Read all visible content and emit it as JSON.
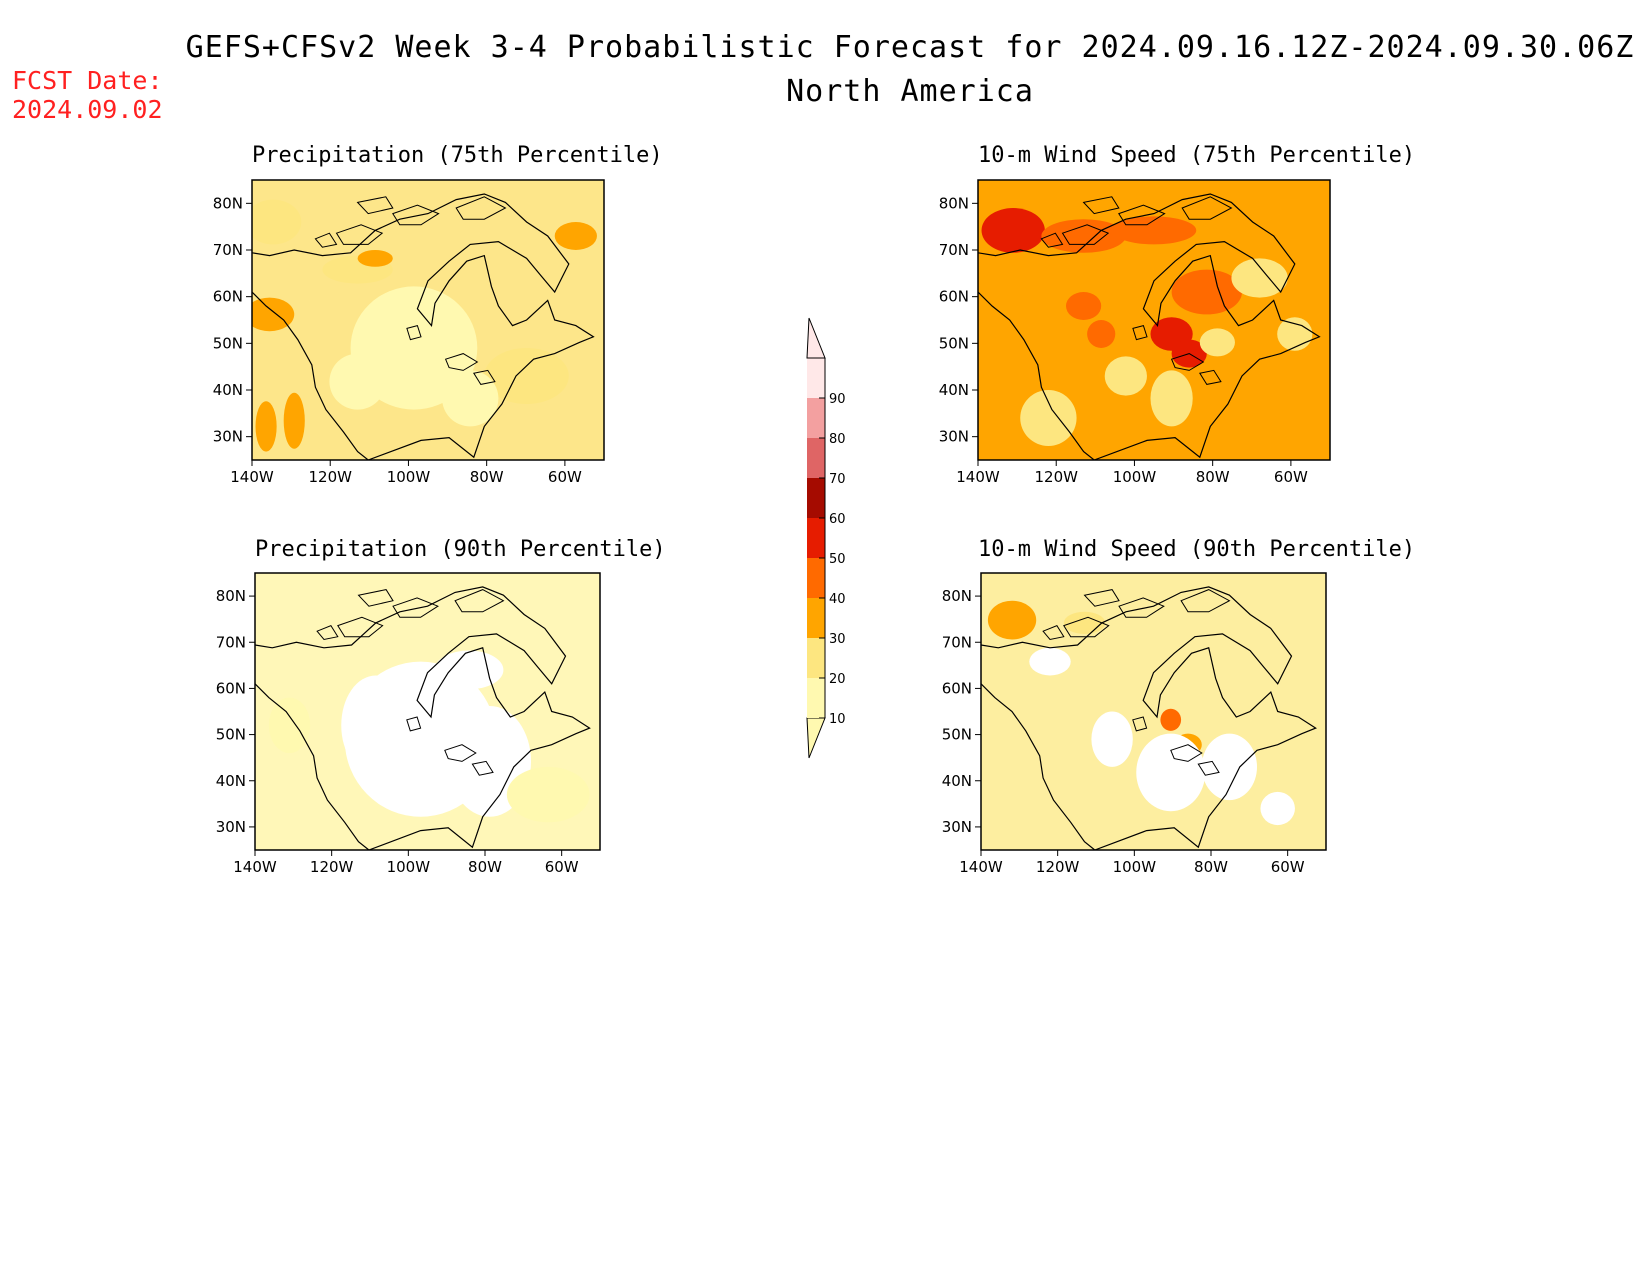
{
  "header": {
    "title": "GEFS+CFSv2 Week 3-4 Probabilistic Forecast for 2024.09.16.12Z-2024.09.30.06Z",
    "subtitle": "North America",
    "fcst_label": "FCST Date:",
    "fcst_date": "2024.09.02"
  },
  "panels": [
    {
      "id": "precip75",
      "title": "Precipitation (75th Percentile)"
    },
    {
      "id": "wind75",
      "title": "10-m Wind Speed (75th Percentile)"
    },
    {
      "id": "precip90",
      "title": "Precipitation (90th Percentile)"
    },
    {
      "id": "wind90",
      "title": "10-m Wind Speed (90th Percentile)"
    }
  ],
  "axes": {
    "lat_labels": [
      "80N",
      "70N",
      "60N",
      "50N",
      "40N",
      "30N"
    ],
    "lon_labels": [
      "140W",
      "120W",
      "100W",
      "80W",
      "60W"
    ]
  },
  "colorbar": {
    "labels": [
      "10",
      "20",
      "30",
      "40",
      "50",
      "60",
      "70",
      "80",
      "90"
    ],
    "colors": [
      "#fff9b0",
      "#fde680",
      "#ffa500",
      "#ff6a00",
      "#e61c00",
      "#a50b00",
      "#df6565",
      "#f3a0a0",
      "#ffe8e8"
    ]
  },
  "map_fill": {
    "precip75": "#fde68a",
    "wind75": "#ffa500",
    "precip90": "#fff7b8",
    "wind90": "#fdeea0"
  }
}
